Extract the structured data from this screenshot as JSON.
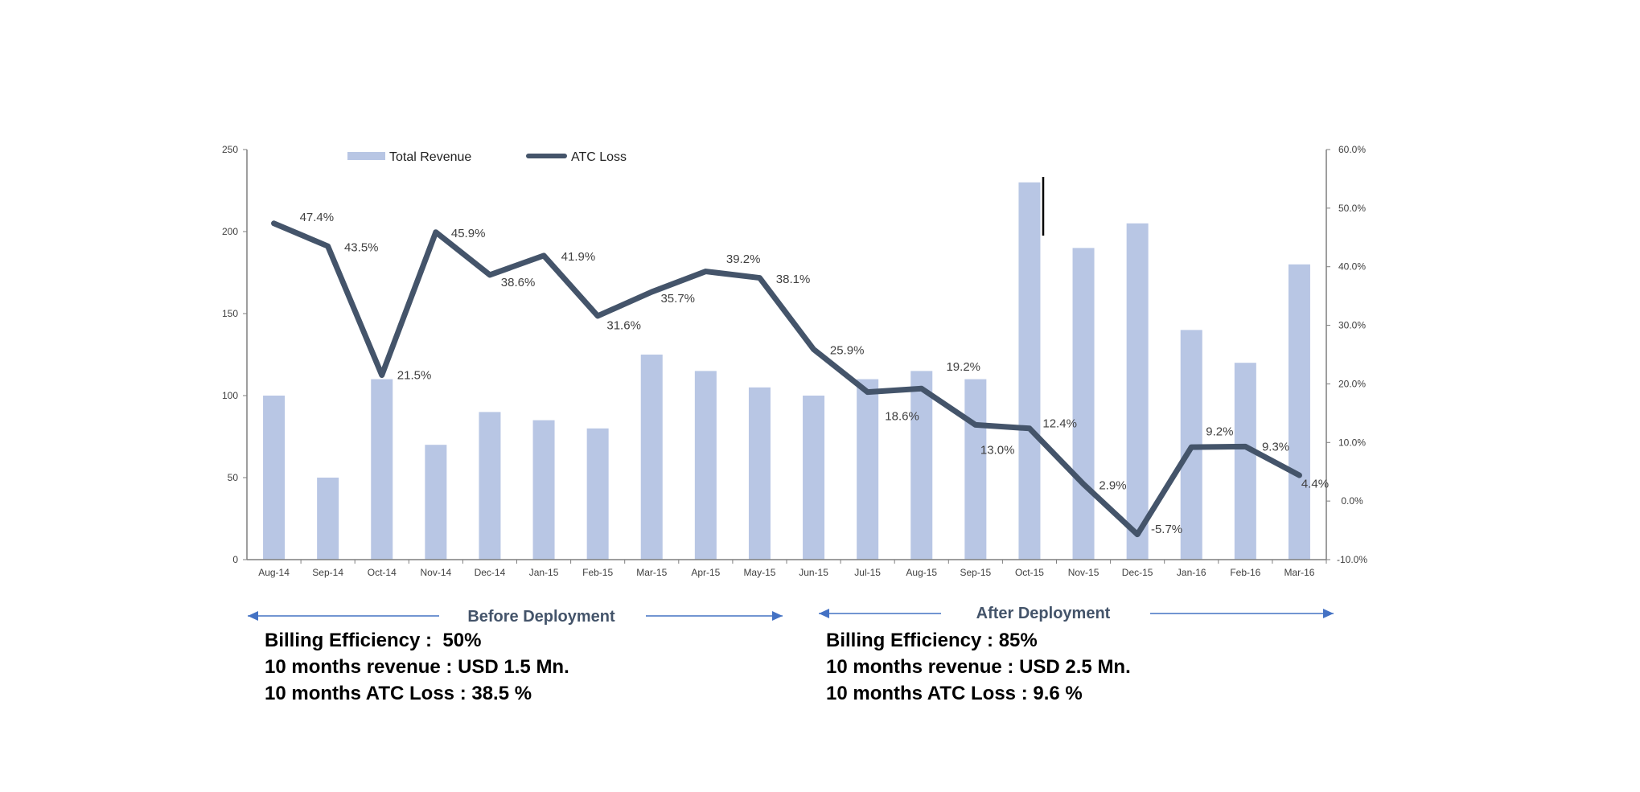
{
  "chart_data": {
    "type": "bar+line",
    "categories": [
      "Aug-14",
      "Sep-14",
      "Oct-14",
      "Nov-14",
      "Dec-14",
      "Jan-15",
      "Feb-15",
      "Mar-15",
      "Apr-15",
      "May-15",
      "Jun-15",
      "Jul-15",
      "Aug-15",
      "Sep-15",
      "Oct-15",
      "Nov-15",
      "Dec-15",
      "Jan-16",
      "Feb-16",
      "Mar-16"
    ],
    "series": [
      {
        "name": "Total Revenue",
        "type": "bar",
        "axis": "left",
        "color": "#b8c6e4",
        "values": [
          100,
          50,
          110,
          70,
          90,
          85,
          80,
          125,
          115,
          105,
          100,
          110,
          115,
          110,
          230,
          190,
          205,
          140,
          120,
          180
        ]
      },
      {
        "name": "ATC Loss",
        "type": "line",
        "axis": "right",
        "color": "#44546a",
        "values": [
          47.4,
          43.5,
          21.5,
          45.9,
          38.6,
          41.9,
          31.6,
          35.7,
          39.2,
          38.1,
          25.9,
          18.6,
          19.2,
          13.0,
          12.4,
          2.9,
          -5.7,
          9.2,
          9.3,
          4.4
        ],
        "labels": [
          "47.4%",
          "43.5%",
          "21.5%",
          "45.9%",
          "38.6%",
          "41.9%",
          "31.6%",
          "35.7%",
          "39.2%",
          "38.1%",
          "25.9%",
          "18.6%",
          "19.2%",
          "13.0%",
          "12.4%",
          "2.9%",
          "-5.7%",
          "9.2%",
          "9.3%",
          "4.4%"
        ]
      }
    ],
    "y_left": {
      "range": [
        0,
        250
      ],
      "ticks": [
        "0",
        "50",
        "100",
        "150",
        "200",
        "250"
      ]
    },
    "y_right": {
      "range": [
        -10,
        60
      ],
      "ticks": [
        "-10.0%",
        "0.0%",
        "10.0%",
        "20.0%",
        "30.0%",
        "40.0%",
        "50.0%",
        "60.0%"
      ]
    },
    "grid": false,
    "legend": "top",
    "legend_entries": [
      "Total Revenue",
      "ATC Loss"
    ]
  },
  "annotations": {
    "before": {
      "title": "Before Deployment",
      "lines": [
        "Billing Efficiency :  50%",
        "10 months revenue : USD 1.5 Mn.",
        "10 months ATC Loss : 38.5 %"
      ]
    },
    "after": {
      "title": "After Deployment",
      "lines": [
        "Billing Efficiency : 85%",
        "10 months revenue : USD 2.5 Mn.",
        "10 months ATC Loss : 9.6 %"
      ]
    },
    "arrow_color": "#4472c4"
  }
}
